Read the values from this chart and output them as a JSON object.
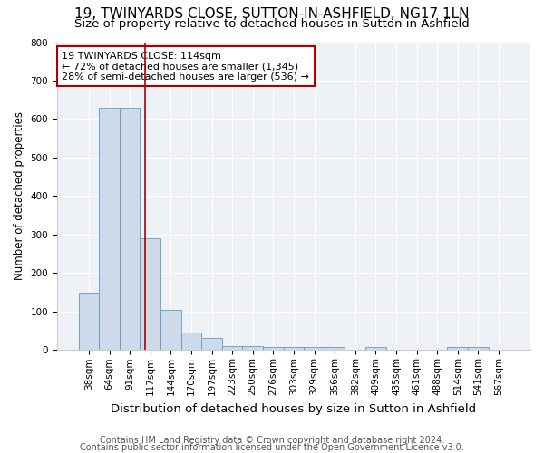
{
  "title": "19, TWINYARDS CLOSE, SUTTON-IN-ASHFIELD, NG17 1LN",
  "subtitle": "Size of property relative to detached houses in Sutton in Ashfield",
  "xlabel": "Distribution of detached houses by size in Sutton in Ashfield",
  "ylabel": "Number of detached properties",
  "footnote1": "Contains HM Land Registry data © Crown copyright and database right 2024.",
  "footnote2": "Contains public sector information licensed under the Open Government Licence v3.0.",
  "bar_labels": [
    "38sqm",
    "64sqm",
    "91sqm",
    "117sqm",
    "144sqm",
    "170sqm",
    "197sqm",
    "223sqm",
    "250sqm",
    "276sqm",
    "303sqm",
    "329sqm",
    "356sqm",
    "382sqm",
    "409sqm",
    "435sqm",
    "461sqm",
    "488sqm",
    "514sqm",
    "541sqm",
    "567sqm"
  ],
  "bar_values": [
    150,
    630,
    630,
    290,
    105,
    45,
    32,
    10,
    10,
    7,
    7,
    7,
    7,
    0,
    7,
    0,
    0,
    0,
    7,
    7,
    0
  ],
  "bar_color": "#ccdaea",
  "bar_edge_color": "#6699bb",
  "vline_x": 2.75,
  "vline_color": "#aa0000",
  "annotation_line1": "19 TWINYARDS CLOSE: 114sqm",
  "annotation_line2": "← 72% of detached houses are smaller (1,345)",
  "annotation_line3": "28% of semi-detached houses are larger (536) →",
  "annotation_box_color": "white",
  "annotation_box_edge_color": "#aa0000",
  "ylim": [
    0,
    800
  ],
  "yticks": [
    0,
    100,
    200,
    300,
    400,
    500,
    600,
    700,
    800
  ],
  "title_fontsize": 11,
  "subtitle_fontsize": 9.5,
  "xlabel_fontsize": 9.5,
  "ylabel_fontsize": 8.5,
  "annotation_fontsize": 8,
  "tick_fontsize": 7.5,
  "footnote_fontsize": 7,
  "background_color": "#eef2f7"
}
